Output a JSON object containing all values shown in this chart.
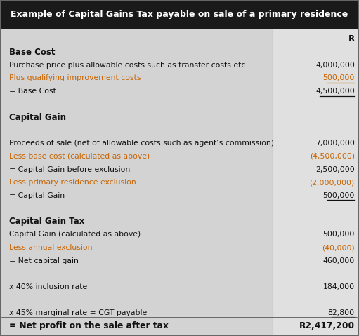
{
  "title": "Example of Capital Gains Tax payable on sale of a primary residence",
  "title_bg": "#1a1a1a",
  "title_color": "#ffffff",
  "body_bg": "#d3d3d3",
  "right_col_bg": "#e0e0e0",
  "text_color": "#111111",
  "orange_color": "#c86400",
  "figsize": [
    5.11,
    4.79
  ],
  "dpi": 100,
  "col_header_R": "R",
  "rows": [
    {
      "label": "Base Cost",
      "value": "",
      "bold": true,
      "underline": false,
      "orange_label": false,
      "orange_value": false,
      "section_gap_before": false,
      "value_bold": false
    },
    {
      "label": "Purchase price plus allowable costs such as transfer costs etc",
      "value": "4,000,000",
      "bold": false,
      "underline": false,
      "orange_label": false,
      "orange_value": false,
      "section_gap_before": false,
      "value_bold": false
    },
    {
      "label": "Plus qualifying improvement costs",
      "value": "500,000",
      "bold": false,
      "underline": true,
      "orange_label": true,
      "orange_value": true,
      "section_gap_before": false,
      "value_bold": false
    },
    {
      "label": "= Base Cost",
      "value": "4,500,000",
      "bold": false,
      "underline": true,
      "orange_label": false,
      "orange_value": false,
      "section_gap_before": false,
      "value_bold": false
    },
    {
      "label": "",
      "value": "",
      "bold": false,
      "underline": false,
      "orange_label": false,
      "orange_value": false,
      "section_gap_before": false,
      "value_bold": false
    },
    {
      "label": "Capital Gain",
      "value": "",
      "bold": true,
      "underline": false,
      "orange_label": false,
      "orange_value": false,
      "section_gap_before": false,
      "value_bold": false
    },
    {
      "label": "",
      "value": "",
      "bold": false,
      "underline": false,
      "orange_label": false,
      "orange_value": false,
      "section_gap_before": false,
      "value_bold": false
    },
    {
      "label": "Proceeds of sale (net of allowable costs such as agent’s commission)",
      "value": "7,000,000",
      "bold": false,
      "underline": false,
      "orange_label": false,
      "orange_value": false,
      "section_gap_before": false,
      "value_bold": false
    },
    {
      "label": "Less base cost (calculated as above)",
      "value": "(4,500,000)",
      "bold": false,
      "underline": false,
      "orange_label": true,
      "orange_value": true,
      "section_gap_before": false,
      "value_bold": false
    },
    {
      "label": "= Capital Gain before exclusion",
      "value": "2,500,000",
      "bold": false,
      "underline": false,
      "orange_label": false,
      "orange_value": false,
      "section_gap_before": false,
      "value_bold": false
    },
    {
      "label": "Less primary residence exclusion",
      "value": "(2,000,000)",
      "bold": false,
      "underline": false,
      "orange_label": true,
      "orange_value": true,
      "section_gap_before": false,
      "value_bold": false
    },
    {
      "label": "= Capital Gain",
      "value": "500,000",
      "bold": false,
      "underline": true,
      "orange_label": false,
      "orange_value": false,
      "section_gap_before": false,
      "value_bold": false
    },
    {
      "label": "",
      "value": "",
      "bold": false,
      "underline": false,
      "orange_label": false,
      "orange_value": false,
      "section_gap_before": false,
      "value_bold": false
    },
    {
      "label": "Capital Gain Tax",
      "value": "",
      "bold": true,
      "underline": false,
      "orange_label": false,
      "orange_value": false,
      "section_gap_before": false,
      "value_bold": false
    },
    {
      "label": "Capital Gain (calculated as above)",
      "value": "500,000",
      "bold": false,
      "underline": false,
      "orange_label": false,
      "orange_value": false,
      "section_gap_before": false,
      "value_bold": false
    },
    {
      "label": "Less annual exclusion",
      "value": "(40,000)",
      "bold": false,
      "underline": false,
      "orange_label": true,
      "orange_value": true,
      "section_gap_before": false,
      "value_bold": false
    },
    {
      "label": "= Net capital gain",
      "value": "460,000",
      "bold": false,
      "underline": false,
      "orange_label": false,
      "orange_value": false,
      "section_gap_before": false,
      "value_bold": false
    },
    {
      "label": "",
      "value": "",
      "bold": false,
      "underline": false,
      "orange_label": false,
      "orange_value": false,
      "section_gap_before": false,
      "value_bold": false
    },
    {
      "label": "x 40% inclusion rate",
      "value": "184,000",
      "bold": false,
      "underline": false,
      "orange_label": false,
      "orange_value": false,
      "section_gap_before": false,
      "value_bold": false
    },
    {
      "label": "",
      "value": "",
      "bold": false,
      "underline": false,
      "orange_label": false,
      "orange_value": false,
      "section_gap_before": false,
      "value_bold": false
    },
    {
      "label": "x 45% marginal rate = CGT payable",
      "value": "82,800",
      "bold": false,
      "underline": true,
      "orange_label": false,
      "orange_value": false,
      "section_gap_before": false,
      "value_bold": false
    },
    {
      "label": "= Net profit on the sale after tax",
      "value": "R2,417,200",
      "bold": true,
      "underline": false,
      "orange_label": false,
      "orange_value": false,
      "section_gap_before": true,
      "value_bold": true
    }
  ]
}
